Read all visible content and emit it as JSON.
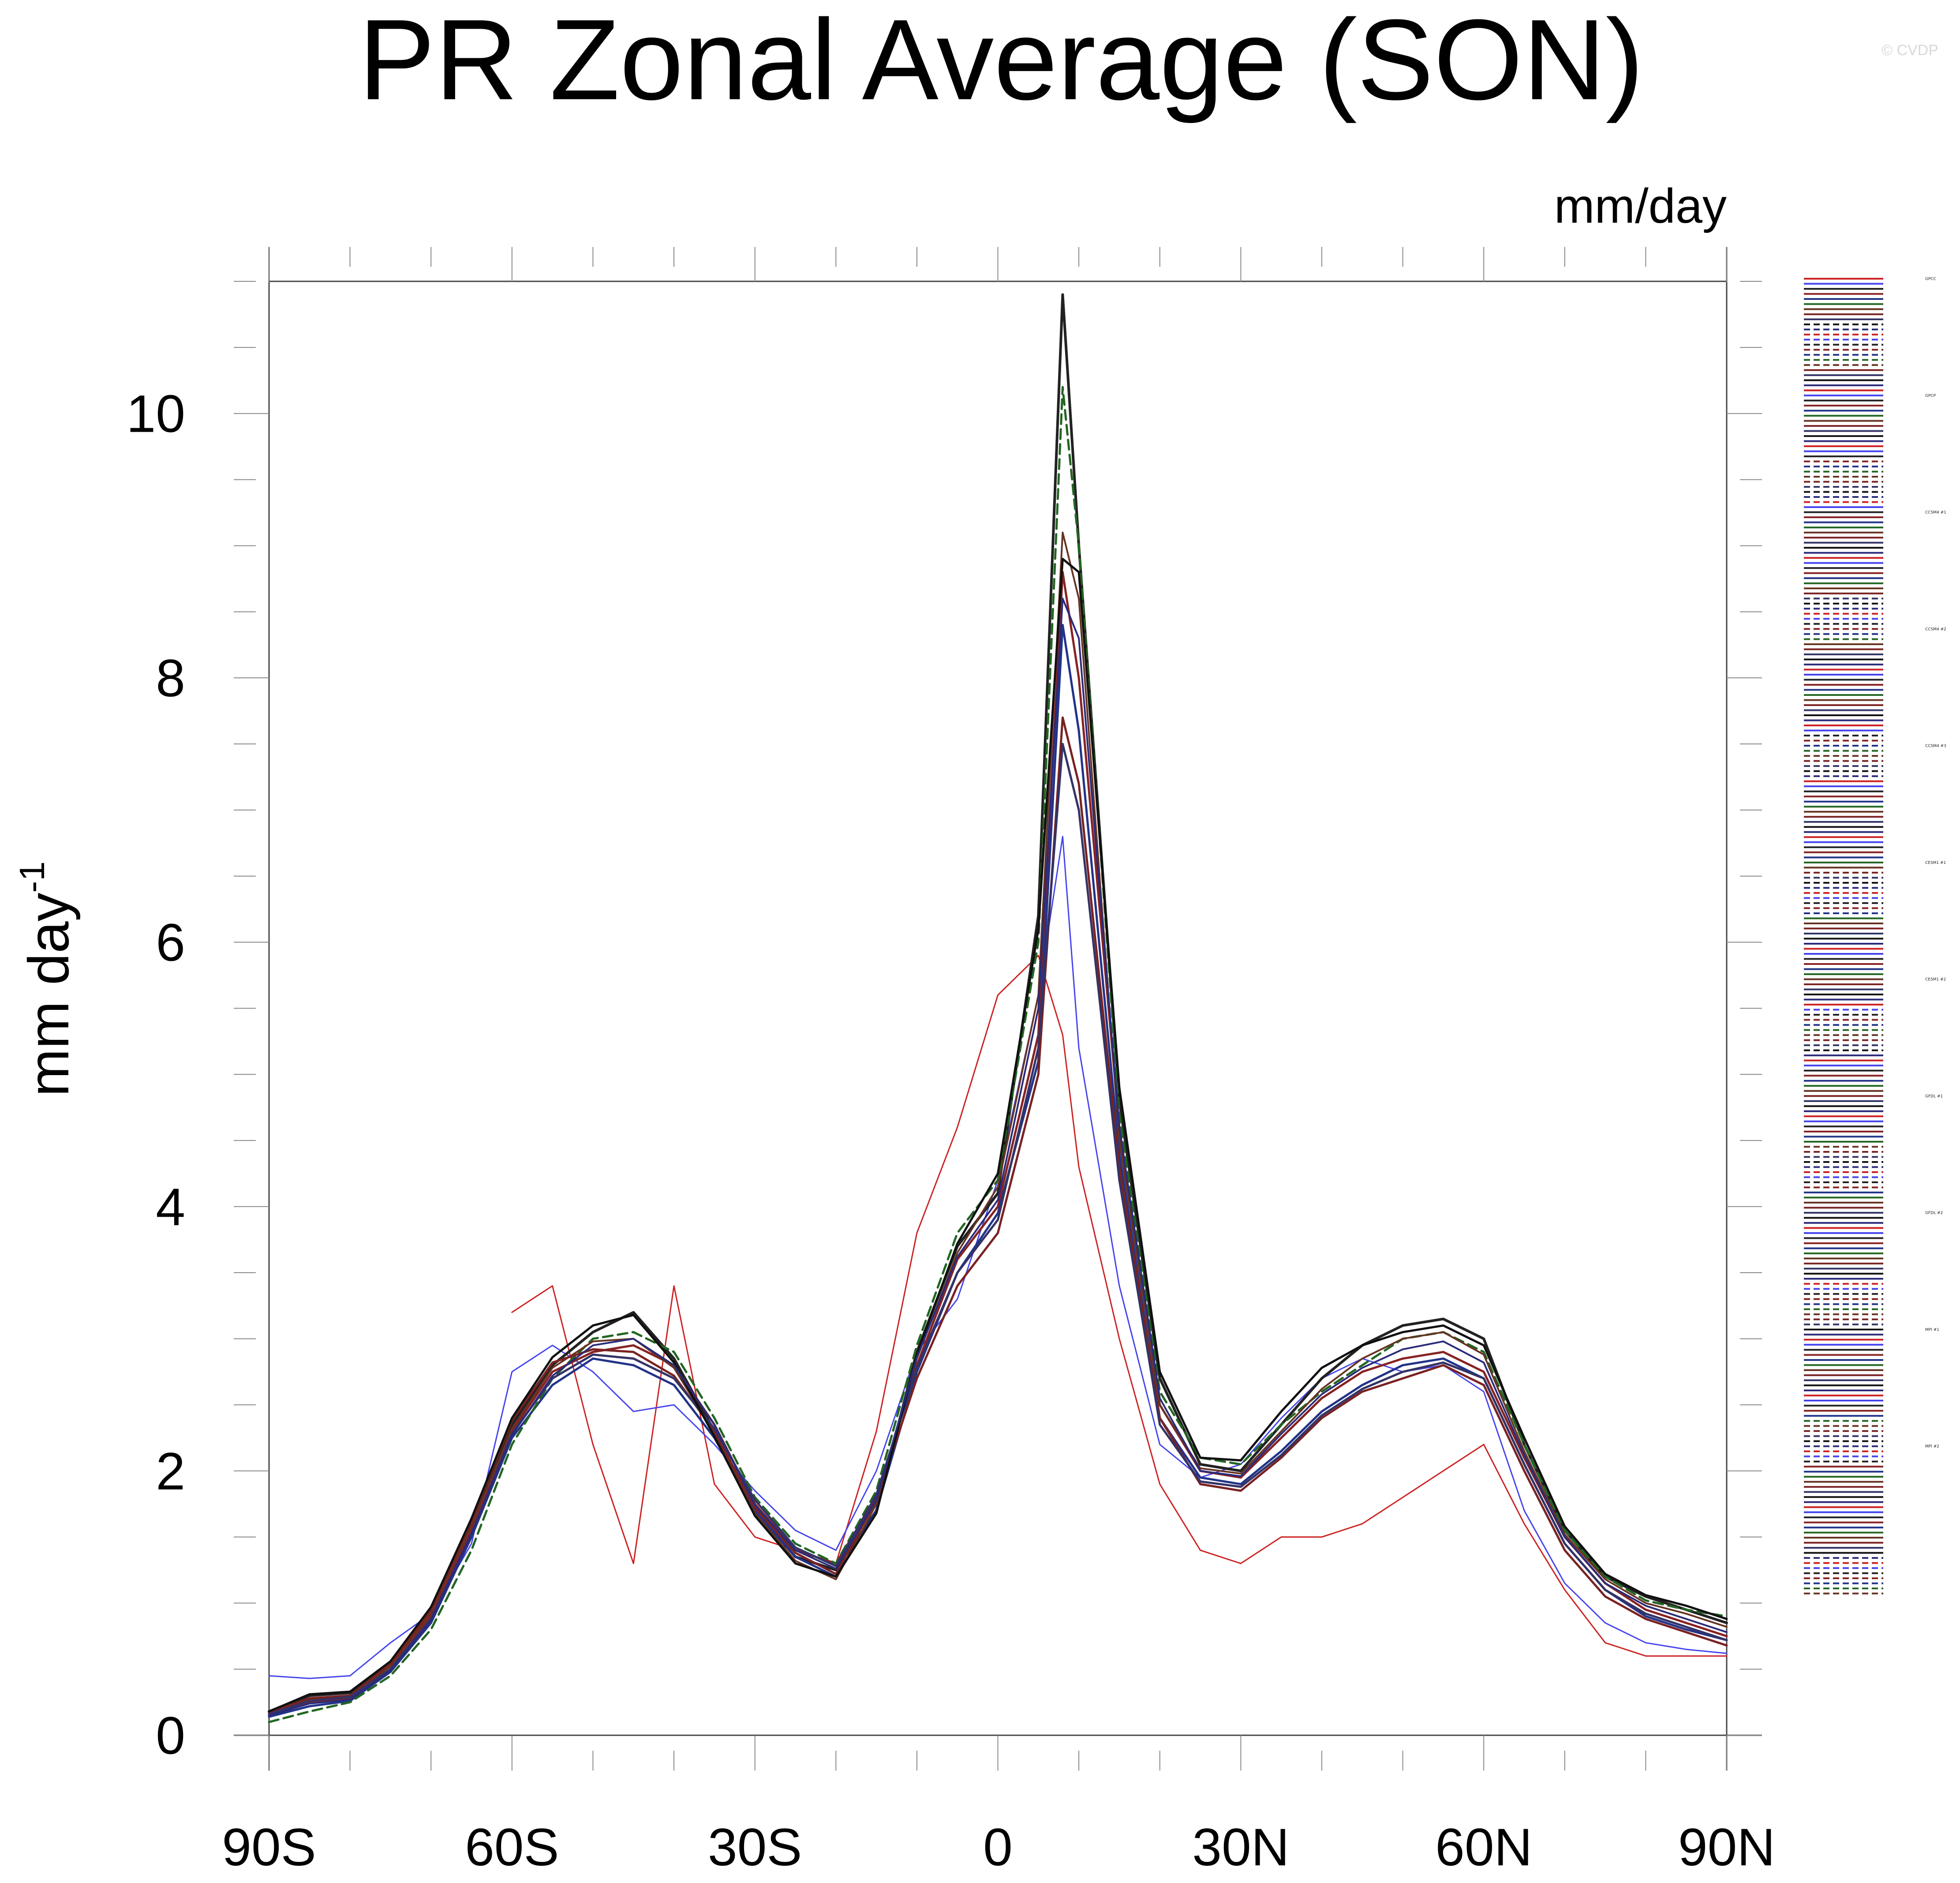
{
  "chart_data": {
    "type": "line",
    "title": "PR Zonal Average (SON)",
    "units_label": "mm/day",
    "ylabel": "mm day",
    "ylabel_superscript": "-1",
    "copyright": "© CVDP",
    "xlim": [
      -90,
      90
    ],
    "ylim": [
      0,
      11
    ],
    "x_ticks": [
      {
        "value": -90,
        "label": "90S"
      },
      {
        "value": -60,
        "label": "60S"
      },
      {
        "value": -30,
        "label": "30S"
      },
      {
        "value": 0,
        "label": "0"
      },
      {
        "value": 30,
        "label": "30N"
      },
      {
        "value": 60,
        "label": "60N"
      },
      {
        "value": 90,
        "label": "90N"
      }
    ],
    "y_ticks": [
      {
        "value": 0,
        "label": "0"
      },
      {
        "value": 2,
        "label": "2"
      },
      {
        "value": 4,
        "label": "4"
      },
      {
        "value": 6,
        "label": "6"
      },
      {
        "value": 8,
        "label": "8"
      },
      {
        "value": 10,
        "label": "10"
      }
    ],
    "x": [
      -90,
      -85,
      -80,
      -75,
      -70,
      -65,
      -60,
      -55,
      -50,
      -45,
      -40,
      -35,
      -30,
      -25,
      -20,
      -15,
      -10,
      -5,
      0,
      5,
      8,
      10,
      15,
      20,
      25,
      30,
      35,
      40,
      45,
      50,
      55,
      60,
      65,
      70,
      75,
      80,
      85,
      90
    ],
    "series": [
      {
        "name": "GPCC",
        "color": "#cc2222",
        "width": 3,
        "dash": "",
        "values": [
          null,
          null,
          null,
          null,
          null,
          null,
          3.2,
          3.4,
          2.2,
          1.3,
          3.4,
          1.9,
          1.5,
          1.4,
          1.3,
          2.3,
          3.8,
          4.6,
          5.6,
          5.9,
          5.3,
          4.3,
          3.0,
          1.9,
          1.4,
          1.3,
          1.5,
          1.5,
          1.6,
          1.8,
          2.0,
          2.2,
          1.6,
          1.1,
          0.7,
          0.6,
          0.6,
          0.6
        ]
      },
      {
        "name": "GPCP",
        "color": "#4444ee",
        "width": 3,
        "dash": "",
        "values": [
          0.45,
          0.43,
          0.45,
          0.7,
          0.92,
          1.45,
          2.75,
          2.95,
          2.75,
          2.45,
          2.5,
          2.2,
          1.85,
          1.55,
          1.4,
          2.0,
          2.9,
          3.3,
          4.2,
          5.6,
          6.8,
          5.2,
          3.4,
          2.2,
          1.95,
          2.05,
          2.4,
          2.7,
          2.85,
          2.75,
          2.8,
          2.6,
          1.7,
          1.15,
          0.85,
          0.7,
          0.65,
          0.62
        ]
      },
      {
        "name": "CCSM4 #1",
        "color": "#222222",
        "width": 6,
        "dash": "",
        "values": [
          0.18,
          0.3,
          0.32,
          0.55,
          0.95,
          1.6,
          2.35,
          2.8,
          3.05,
          3.2,
          2.85,
          2.3,
          1.7,
          1.35,
          1.25,
          1.7,
          2.9,
          3.7,
          4.1,
          6.2,
          10.9,
          9.0,
          4.8,
          2.7,
          2.05,
          2.0,
          2.35,
          2.7,
          2.95,
          3.1,
          3.15,
          3.0,
          2.2,
          1.55,
          1.2,
          1.05,
          0.95,
          0.85
        ]
      },
      {
        "name": "CCSM4 #2",
        "color": "#882222",
        "width": 5,
        "dash": "",
        "values": [
          0.15,
          0.25,
          0.28,
          0.5,
          0.9,
          1.55,
          2.3,
          2.75,
          2.9,
          2.95,
          2.8,
          2.35,
          1.75,
          1.4,
          1.3,
          1.8,
          2.8,
          3.6,
          4.0,
          5.3,
          8.8,
          8.0,
          4.6,
          2.5,
          2.0,
          1.95,
          2.25,
          2.55,
          2.75,
          2.85,
          2.9,
          2.75,
          2.1,
          1.5,
          1.15,
          0.95,
          0.85,
          0.75
        ]
      },
      {
        "name": "CCSM4 #3",
        "color": "#223388",
        "width": 5,
        "dash": "",
        "values": [
          0.14,
          0.22,
          0.26,
          0.48,
          0.85,
          1.5,
          2.25,
          2.65,
          2.85,
          2.8,
          2.65,
          2.25,
          1.7,
          1.35,
          1.2,
          1.7,
          2.75,
          3.5,
          3.95,
          5.1,
          8.4,
          7.6,
          4.4,
          2.4,
          1.95,
          1.9,
          2.15,
          2.45,
          2.65,
          2.8,
          2.85,
          2.7,
          2.05,
          1.45,
          1.1,
          0.9,
          0.8,
          0.72
        ]
      },
      {
        "name": "CESM1 #1",
        "color": "#226622",
        "width": 5,
        "dash": "22,12",
        "values": [
          0.1,
          0.18,
          0.25,
          0.45,
          0.8,
          1.4,
          2.2,
          2.7,
          3.0,
          3.05,
          2.9,
          2.4,
          1.8,
          1.45,
          1.3,
          1.85,
          2.95,
          3.8,
          4.2,
          6.0,
          10.2,
          9.0,
          4.7,
          2.6,
          2.1,
          2.05,
          2.35,
          2.6,
          2.8,
          3.0,
          3.05,
          2.9,
          2.2,
          1.55,
          1.2,
          1.02,
          0.95,
          0.9
        ]
      },
      {
        "name": "CESM1 #2",
        "color": "#663322",
        "width": 4,
        "dash": "",
        "values": [
          0.16,
          0.27,
          0.3,
          0.52,
          0.92,
          1.58,
          2.32,
          2.78,
          2.98,
          3.0,
          2.78,
          2.28,
          1.68,
          1.32,
          1.18,
          1.75,
          2.85,
          3.65,
          4.15,
          5.6,
          9.1,
          8.6,
          4.5,
          2.5,
          2.02,
          1.98,
          2.3,
          2.62,
          2.85,
          3.0,
          3.05,
          2.88,
          2.15,
          1.52,
          1.18,
          1.0,
          0.92,
          0.82
        ]
      },
      {
        "name": "GFDL #1",
        "color": "#7a2222",
        "width": 5,
        "dash": "",
        "values": [
          0.17,
          0.28,
          0.3,
          0.54,
          0.94,
          1.62,
          2.38,
          2.82,
          2.92,
          2.9,
          2.72,
          2.3,
          1.72,
          1.38,
          1.22,
          1.78,
          2.7,
          3.4,
          3.8,
          5.0,
          7.7,
          7.2,
          4.3,
          2.4,
          1.9,
          1.85,
          2.1,
          2.4,
          2.6,
          2.7,
          2.8,
          2.65,
          2.0,
          1.4,
          1.05,
          0.88,
          0.78,
          0.68
        ]
      },
      {
        "name": "GFDL #2",
        "color": "#333366",
        "width": 5,
        "dash": "",
        "values": [
          0.16,
          0.26,
          0.29,
          0.5,
          0.88,
          1.52,
          2.28,
          2.7,
          2.88,
          2.85,
          2.7,
          2.32,
          1.78,
          1.42,
          1.28,
          1.82,
          2.78,
          3.5,
          3.9,
          5.2,
          7.5,
          7.0,
          4.2,
          2.35,
          1.92,
          1.88,
          2.12,
          2.42,
          2.62,
          2.75,
          2.82,
          2.7,
          2.05,
          1.45,
          1.1,
          0.92,
          0.82,
          0.72
        ]
      },
      {
        "name": "MPI #1",
        "color": "#111111",
        "width": 5,
        "dash": "",
        "values": [
          0.18,
          0.31,
          0.33,
          0.56,
          0.97,
          1.64,
          2.4,
          2.86,
          3.1,
          3.18,
          2.82,
          2.26,
          1.66,
          1.3,
          1.2,
          1.68,
          2.88,
          3.72,
          4.25,
          6.1,
          8.9,
          8.8,
          4.9,
          2.75,
          2.1,
          2.08,
          2.45,
          2.78,
          2.95,
          3.05,
          3.1,
          2.95,
          2.25,
          1.58,
          1.22,
          1.06,
          0.98,
          0.88
        ]
      },
      {
        "name": "MPI #2",
        "color": "#2a2a7a",
        "width": 4,
        "dash": "",
        "values": [
          0.15,
          0.24,
          0.27,
          0.49,
          0.87,
          1.53,
          2.27,
          2.72,
          2.95,
          3.0,
          2.8,
          2.35,
          1.74,
          1.4,
          1.26,
          1.78,
          2.86,
          3.62,
          4.05,
          5.5,
          8.6,
          8.3,
          4.6,
          2.55,
          2.0,
          1.96,
          2.28,
          2.58,
          2.78,
          2.92,
          2.98,
          2.82,
          2.12,
          1.5,
          1.15,
          0.98,
          0.88,
          0.78
        ]
      }
    ],
    "legend": {
      "location": "right",
      "entries": [
        "GPCC",
        "GPCP",
        "CCSM4 #1",
        "CCSM4 #2",
        "CCSM4 #3",
        "CESM1 #1",
        "CESM1 #2",
        "GFDL #1",
        "GFDL #2",
        "MPI #1",
        "MPI #2"
      ],
      "colors": [
        "#cc2222",
        "#4444ee",
        "#222222",
        "#882222",
        "#223388",
        "#226622",
        "#663322",
        "#7a2222",
        "#333366",
        "#111111",
        "#2a2a7a"
      ]
    }
  }
}
